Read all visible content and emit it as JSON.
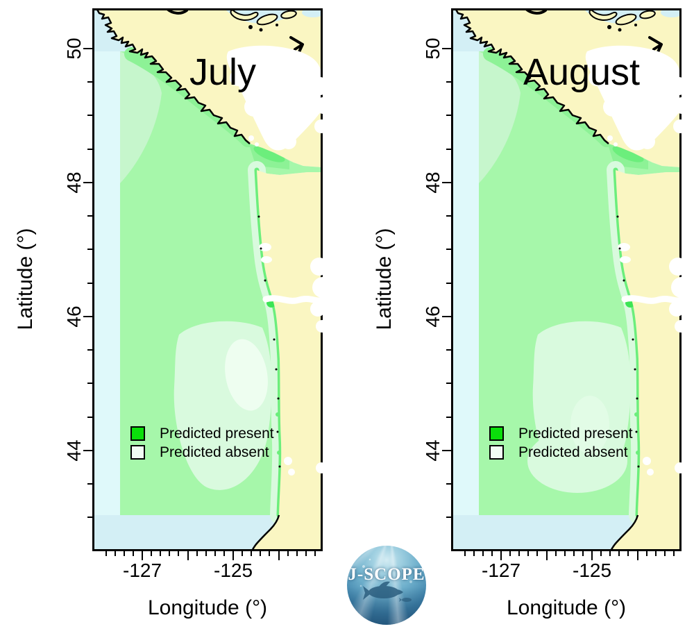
{
  "figure": {
    "background": "#ffffff",
    "panels": [
      {
        "title": "July"
      },
      {
        "title": "August"
      }
    ],
    "axes": {
      "x_label": "Longitude (°)",
      "y_label": "Latitude (°)",
      "x_ticks": {
        "labeled": [
          {
            "value": -127,
            "label": "-127"
          },
          {
            "value": -125,
            "label": "-125"
          }
        ],
        "major_values": [
          -127,
          -126,
          -125,
          -124
        ],
        "minor_start": -127.8,
        "minor_end": -123.2,
        "minor_step": 0.2
      },
      "y_ticks": {
        "labeled": [
          {
            "value": 50,
            "label": "50"
          },
          {
            "value": 48,
            "label": "48"
          },
          {
            "value": 46,
            "label": "46"
          },
          {
            "value": 44,
            "label": "44"
          }
        ],
        "major_values": [
          44,
          46,
          48,
          50
        ],
        "minor_start": 43,
        "minor_end": 50,
        "minor_step": 0.5
      },
      "x_range_deg": [
        -128.1,
        -123.0
      ],
      "y_range_deg": [
        42.5,
        50.6
      ]
    },
    "legend": {
      "items": [
        {
          "label": "Predicted present",
          "color": "#0bde0b"
        },
        {
          "label": "Predicted absent",
          "color": "#f2fdf4"
        }
      ]
    },
    "colors": {
      "land": "#faf6c2",
      "ocean": "#d3eff5",
      "ocean_pale": "#dff9fa",
      "domain_green": "#a6f7aa",
      "green_dark": "#8df296",
      "green_bright": "#6cee7c",
      "green_spot": "#3ce455",
      "mint": "#c6f6cc",
      "pale_green": "#d9fade",
      "palest_green": "#eefef0",
      "coast_line": "#000000"
    },
    "logo": {
      "text": "J-SCOPE"
    }
  }
}
